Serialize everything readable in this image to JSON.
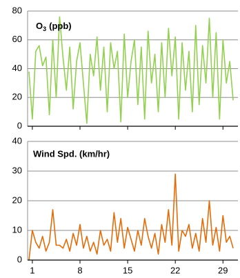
{
  "chart_data": [
    {
      "type": "line",
      "title": {
        "main": "O",
        "subscript": "3",
        "rest": "(ppb)"
      },
      "x": [
        0.5,
        1,
        1.5,
        2,
        2.5,
        3,
        3.5,
        4,
        4.5,
        5,
        5.5,
        6,
        6.5,
        7,
        7.5,
        8,
        8.5,
        9,
        9.5,
        10,
        10.5,
        11,
        11.5,
        12,
        12.5,
        13,
        13.5,
        14,
        14.5,
        15,
        15.5,
        16,
        16.5,
        17,
        17.5,
        18,
        18.5,
        19,
        19.5,
        20,
        20.5,
        21,
        21.5,
        22,
        22.5,
        23,
        23.5,
        24,
        24.5,
        25,
        25.5,
        26,
        26.5,
        27,
        27.5,
        28,
        28.5,
        29,
        29.5,
        30,
        30.5
      ],
      "series": [
        {
          "name": "O3",
          "color": "#92d050",
          "values": [
            38,
            5,
            52,
            56,
            42,
            48,
            8,
            60,
            20,
            76,
            48,
            25,
            55,
            12,
            45,
            58,
            30,
            2,
            50,
            35,
            62,
            25,
            55,
            10,
            58,
            40,
            52,
            3,
            64,
            20,
            45,
            60,
            15,
            55,
            5,
            66,
            30,
            50,
            10,
            58,
            20,
            68,
            35,
            62,
            5,
            58,
            25,
            52,
            10,
            70,
            15,
            56,
            30,
            75,
            20,
            65,
            5,
            60,
            30,
            45,
            18
          ]
        }
      ],
      "xlim": [
        0.3,
        31.2
      ],
      "xticks": [
        1,
        8,
        15,
        22,
        29
      ],
      "ylim": [
        0,
        80
      ],
      "yticks": [
        0,
        20,
        40,
        60,
        80
      ],
      "grid": true
    },
    {
      "type": "line",
      "title": "Wind Spd. (km/hr)",
      "x": [
        0.5,
        1,
        1.5,
        2,
        2.5,
        3,
        3.5,
        4,
        4.5,
        5,
        5.5,
        6,
        6.5,
        7,
        7.5,
        8,
        8.5,
        9,
        9.5,
        10,
        10.5,
        11,
        11.5,
        12,
        12.5,
        13,
        13.5,
        14,
        14.5,
        15,
        15.5,
        16,
        16.5,
        17,
        17.5,
        18,
        18.5,
        19,
        19.5,
        20,
        20.5,
        21,
        21.5,
        22,
        22.5,
        23,
        23.5,
        24,
        24.5,
        25,
        25.5,
        26,
        26.5,
        27,
        27.5,
        28,
        28.5,
        29,
        29.5,
        30,
        30.5
      ],
      "series": [
        {
          "name": "Wind Spd.",
          "color": "#e36c09",
          "values": [
            0,
            10,
            6,
            4,
            8,
            3,
            6,
            17,
            5,
            5,
            4,
            7,
            3,
            9,
            5,
            12,
            4,
            8,
            3,
            6,
            2,
            10,
            5,
            7,
            3,
            16,
            6,
            14,
            4,
            11,
            7,
            3,
            10,
            5,
            14,
            8,
            4,
            9,
            2,
            12,
            6,
            17,
            5,
            29,
            3,
            10,
            8,
            12,
            4,
            9,
            3,
            14,
            6,
            20,
            5,
            11,
            3,
            15,
            6,
            8,
            4
          ]
        }
      ],
      "xlim": [
        0.3,
        31.2
      ],
      "xticks": [
        1,
        8,
        15,
        22,
        29
      ],
      "ylim": [
        0,
        40
      ],
      "yticks": [
        0,
        10,
        20,
        30,
        40
      ],
      "grid": true
    }
  ]
}
